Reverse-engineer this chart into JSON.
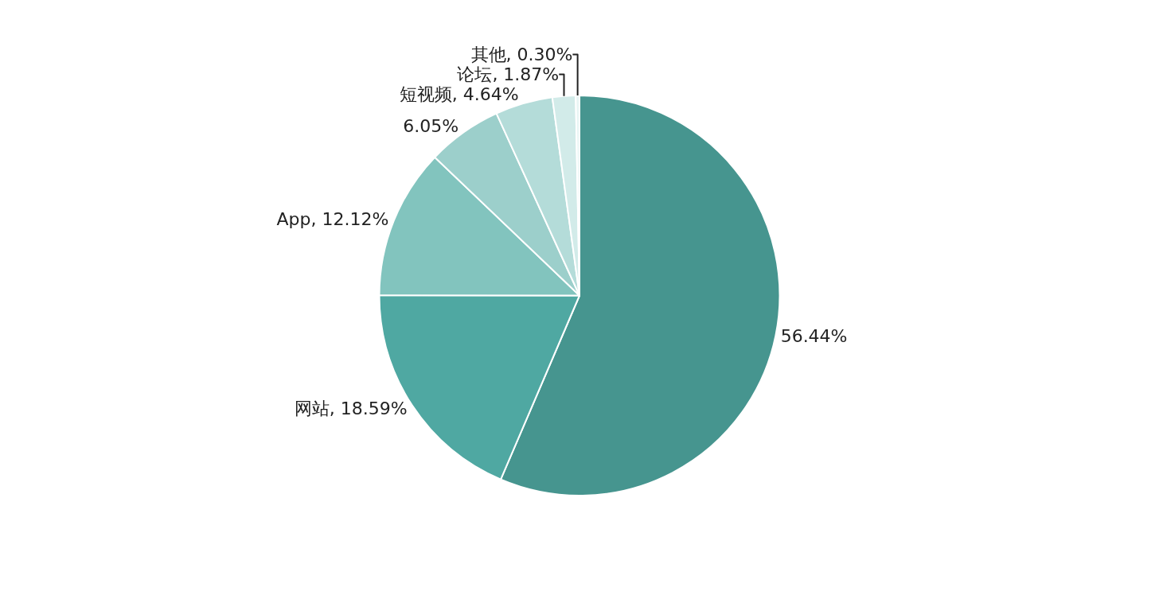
{
  "chart_data": {
    "type": "pie",
    "categories": [
      null,
      "网站",
      "App",
      null,
      "短视频",
      "论坛",
      "其他"
    ],
    "values": [
      56.44,
      18.59,
      12.12,
      6.05,
      4.64,
      1.87,
      0.3
    ],
    "value_labels": [
      "56.44%",
      "18.59%",
      "12.12%",
      "6.05%",
      "4.64%",
      "1.87%",
      "0.30%"
    ],
    "colors": [
      "#46958f",
      "#4fa8a2",
      "#82c4be",
      "#9ccfcb",
      "#b4dcd9",
      "#d2ebe9",
      "#e8f5f4"
    ],
    "legend": false
  }
}
